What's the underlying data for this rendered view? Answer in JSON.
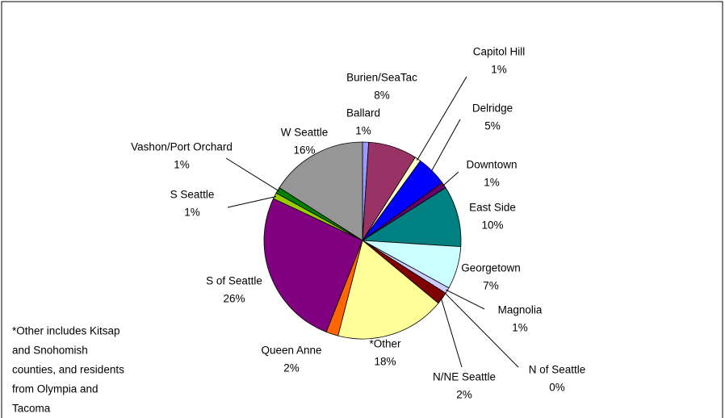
{
  "chart_data": {
    "type": "pie",
    "categories": [
      "Ballard",
      "Burien/SeaTac",
      "Capitol Hill",
      "Delridge",
      "Downtown",
      "East Side",
      "Georgetown",
      "Magnolia",
      "N of Seattle",
      "N/NE Seattle",
      "*Other",
      "Queen Anne",
      "S of Seattle",
      "S Seattle",
      "Vashon/Port Orchard",
      "W Seattle"
    ],
    "values": [
      1,
      8,
      1,
      5,
      1,
      10,
      7,
      1,
      0,
      2,
      18,
      2,
      26,
      1,
      1,
      16
    ],
    "value_labels": [
      "1%",
      "8%",
      "1%",
      "5%",
      "1%",
      "10%",
      "7%",
      "1%",
      "0%",
      "2%",
      "18%",
      "2%",
      "26%",
      "1%",
      "1%",
      "16%"
    ],
    "colors": [
      "#9999ff",
      "#993366",
      "#ffffcc",
      "#0000ff",
      "#660066",
      "#008080",
      "#ccffff",
      "#ccccff",
      "#ff8080",
      "#800000",
      "#ffff99",
      "#ff6600",
      "#800080",
      "#99cc00",
      "#008000",
      "#969696"
    ],
    "annotation": [
      "*Other includes Kitsap",
      "and Snohomish",
      "counties, and residents",
      "from Olympia and",
      "Tacoma"
    ]
  }
}
